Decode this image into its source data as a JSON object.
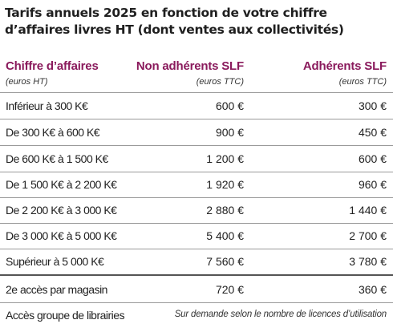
{
  "title": "Tarifs annuels 2025 en fonction de votre chiffre d’affaires livres HT (dont ventes aux collectivités)",
  "columns": {
    "col1": {
      "header": "Chiffre d’affaires",
      "sub": "(euros HT)"
    },
    "col2": {
      "header": "Non adhérents SLF",
      "sub": "(euros TTC)"
    },
    "col3": {
      "header": "Adhérents SLF",
      "sub": "(euros TTC)"
    }
  },
  "rows": [
    {
      "label": "Inférieur à 300 K€",
      "non_adherents": "600 €",
      "adherents": "300 €"
    },
    {
      "label": "De 300 K€ à 600 K€",
      "non_adherents": "900 €",
      "adherents": "450 €"
    },
    {
      "label": "De 600 K€ à 1 500 K€",
      "non_adherents": "1 200 €",
      "adherents": "600 €"
    },
    {
      "label": "De 1 500 K€ à 2 200 K€",
      "non_adherents": "1 920 €",
      "adherents": "960 €"
    },
    {
      "label": "De 2 200 K€ à 3 000 K€",
      "non_adherents": "2 880 €",
      "adherents": "1 440 €"
    },
    {
      "label": "De 3 000 K€ à 5 000 K€",
      "non_adherents": "5 400 €",
      "adherents": "2 700 €"
    },
    {
      "label": "Supérieur à 5 000 K€",
      "non_adherents": "7 560 €",
      "adherents": "3 780 €"
    },
    {
      "label": "2e accès par magasin",
      "non_adherents": "720 €",
      "adherents": "360 €"
    }
  ],
  "group_row": {
    "label": "Accès groupe de librairies",
    "note": "Sur demande selon le nombre de licences d’utilisation"
  },
  "colors": {
    "header": "#8a1a5c",
    "rule": "#9a9a9a",
    "thick_rule": "#555555"
  }
}
